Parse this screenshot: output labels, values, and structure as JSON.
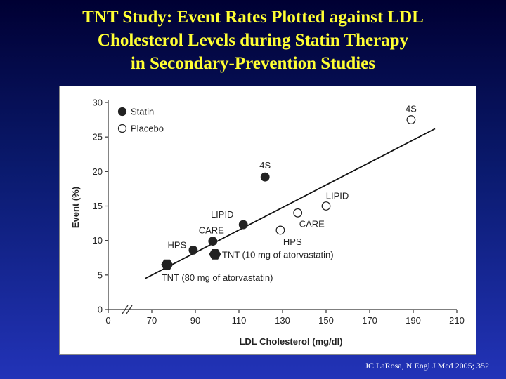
{
  "slide": {
    "title_lines": [
      "TNT Study: Event Rates Plotted against LDL",
      "Cholesterol Levels during Statin Therapy",
      "in Secondary-Prevention Studies"
    ],
    "citation": "JC LaRosa, N Engl J Med 2005; 352"
  },
  "colors": {
    "title": "#ffff33",
    "background": "#0a1a6e",
    "chart_bg": "#ffffff"
  },
  "chart_data": {
    "type": "scatter",
    "xlabel": "LDL Cholesterol (mg/dl)",
    "ylabel": "Event (%)",
    "xticks": [
      0,
      70,
      90,
      110,
      130,
      150,
      170,
      190,
      210
    ],
    "yticks": [
      0,
      5,
      10,
      15,
      20,
      25,
      30
    ],
    "xlim": [
      50,
      210
    ],
    "ylim": [
      0,
      30
    ],
    "x_axis_break": true,
    "legend": {
      "placement": "top-left",
      "entries": [
        {
          "name": "Statin",
          "marker": "filled-circle"
        },
        {
          "name": "Placebo",
          "marker": "open-circle"
        }
      ]
    },
    "series": [
      {
        "name": "Statin",
        "points": [
          {
            "label": "4S",
            "x": 122,
            "y": 19.2
          },
          {
            "label": "LIPID",
            "x": 112,
            "y": 12.3
          },
          {
            "label": "CARE",
            "x": 98,
            "y": 9.9
          },
          {
            "label": "HPS",
            "x": 89,
            "y": 8.6
          }
        ]
      },
      {
        "name": "Placebo",
        "points": [
          {
            "label": "4S",
            "x": 189,
            "y": 27.5
          },
          {
            "label": "LIPID",
            "x": 150,
            "y": 15.0
          },
          {
            "label": "CARE",
            "x": 137,
            "y": 14.0
          },
          {
            "label": "HPS",
            "x": 129,
            "y": 11.5
          }
        ]
      },
      {
        "name": "TNT",
        "marker": "filled-hexagon",
        "points": [
          {
            "label": "TNT (10 mg of atorvastatin)",
            "x": 99,
            "y": 8.0
          },
          {
            "label": "TNT (80 mg of atorvastatin)",
            "x": 77,
            "y": 6.5
          }
        ]
      }
    ],
    "trendline": {
      "from": {
        "x": 67,
        "y": 4.5
      },
      "to": {
        "x": 200,
        "y": 26.2
      }
    }
  }
}
